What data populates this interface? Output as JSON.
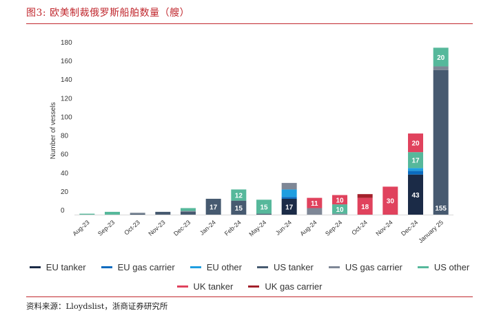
{
  "header": {
    "title": "图3:  欧美制裁俄罗斯船舶数量（艘）"
  },
  "footer": {
    "source": "资料来源：Lloydslist，浙商证券研究所"
  },
  "colors": {
    "EU tanker": "#1b2b47",
    "EU gas carrier": "#0a6bbf",
    "EU other": "#1f9ee0",
    "US tanker": "#475a70",
    "US gas carrier": "#7e8796",
    "US other": "#56b89b",
    "UK tanker": "#e0425d",
    "UK gas carrier": "#a3202b",
    "axis": "#d8d8d8"
  },
  "chart_data": {
    "type": "bar",
    "stacked": true,
    "title": "",
    "xlabel": "",
    "ylabel": "Number of vessels",
    "ylim": [
      0,
      180
    ],
    "yticks": [
      0,
      20,
      40,
      60,
      80,
      100,
      120,
      140,
      160,
      180
    ],
    "grid": false,
    "legend_position": "bottom",
    "categories": [
      "Aug-23",
      "Sep-23",
      "Oct-23",
      "Nov-23",
      "Dec-23",
      "Jan-24",
      "Feb-24",
      "May-24",
      "Jun-24",
      "Aug-24",
      "Sep-24",
      "Oct-24",
      "Nov-24",
      "Dec-24",
      "January 25"
    ],
    "series": [
      {
        "name": "EU tanker",
        "values": [
          0,
          0,
          0,
          0,
          0,
          0,
          0,
          0,
          17,
          0,
          0,
          0,
          0,
          43,
          0
        ],
        "labels": [
          "",
          "",
          "",
          "",
          "",
          "",
          "",
          "",
          "17",
          "",
          "",
          "",
          "",
          "43",
          ""
        ]
      },
      {
        "name": "EU gas carrier",
        "values": [
          0,
          0,
          0,
          0,
          0,
          0,
          0,
          0,
          2,
          0,
          0,
          0,
          0,
          4,
          0
        ],
        "labels": [
          "",
          "",
          "",
          "",
          "",
          "",
          "",
          "",
          "",
          "",
          "",
          "",
          "",
          "",
          ""
        ]
      },
      {
        "name": "EU other",
        "values": [
          0,
          0,
          0,
          0,
          0,
          0,
          0,
          0,
          8,
          0,
          0,
          0,
          0,
          3,
          0
        ],
        "labels": [
          "",
          "",
          "",
          "",
          "",
          "",
          "",
          "",
          "",
          "",
          "",
          "",
          "",
          "",
          ""
        ]
      },
      {
        "name": "US tanker",
        "values": [
          0,
          0,
          1,
          3,
          3,
          17,
          15,
          1,
          0,
          0,
          0,
          0,
          0,
          0,
          155
        ],
        "labels": [
          "",
          "",
          "",
          "",
          "",
          "17",
          "15",
          "",
          "",
          "",
          "",
          "",
          "",
          "",
          "155"
        ]
      },
      {
        "name": "US gas carrier",
        "values": [
          0,
          0,
          1,
          0,
          1,
          0,
          0,
          0,
          7,
          7,
          1,
          0,
          0,
          0,
          4
        ],
        "labels": [
          "",
          "",
          "",
          "",
          "",
          "",
          "",
          "",
          "",
          "",
          "",
          "",
          "",
          "",
          ""
        ]
      },
      {
        "name": "US other",
        "values": [
          1,
          3,
          0,
          0,
          3,
          0,
          12,
          15,
          0,
          0,
          10,
          0,
          0,
          17,
          20
        ],
        "labels": [
          "",
          "",
          "",
          "",
          "",
          "",
          "12",
          "15",
          "",
          "",
          "10",
          "",
          "",
          "17",
          "20"
        ]
      },
      {
        "name": "UK tanker",
        "values": [
          0,
          0,
          0,
          0,
          0,
          0,
          0,
          0,
          0,
          11,
          10,
          18,
          30,
          20,
          0
        ],
        "labels": [
          "",
          "",
          "",
          "",
          "",
          "",
          "",
          "",
          "",
          "11",
          "10",
          "18",
          "30",
          "20",
          ""
        ]
      },
      {
        "name": "UK gas carrier",
        "values": [
          0,
          0,
          0,
          0,
          0,
          0,
          0,
          0,
          0,
          0,
          0,
          4,
          0,
          0,
          0
        ],
        "labels": [
          "",
          "",
          "",
          "",
          "",
          "",
          "",
          "",
          "",
          "",
          "",
          "",
          "",
          "",
          ""
        ]
      }
    ]
  },
  "legend": {
    "row1": [
      "EU tanker",
      "EU gas carrier",
      "EU other",
      "US tanker",
      "US gas carrier",
      "US other"
    ],
    "row2": [
      "UK tanker",
      "UK gas carrier"
    ]
  }
}
